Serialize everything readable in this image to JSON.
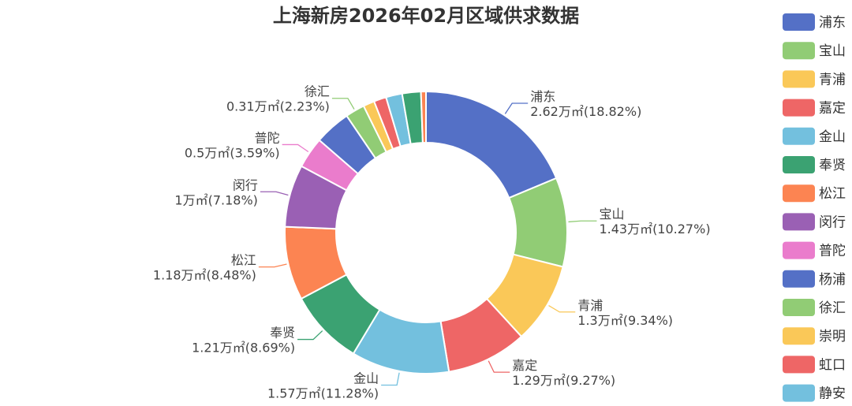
{
  "chart_data": {
    "type": "pie",
    "title": "上海新房2026年02月区域供求数据",
    "legend_position": "right",
    "unit": "万㎡",
    "slices": [
      {
        "name": "浦东",
        "value": 2.62,
        "percent": 18.82,
        "label_value": "2.62万㎡(18.82%)",
        "color": "#5470c6"
      },
      {
        "name": "宝山",
        "value": 1.43,
        "percent": 10.27,
        "label_value": "1.43万㎡(10.27%)",
        "color": "#91cc75"
      },
      {
        "name": "青浦",
        "value": 1.3,
        "percent": 9.34,
        "label_value": "1.3万㎡(9.34%)",
        "color": "#fac858"
      },
      {
        "name": "嘉定",
        "value": 1.29,
        "percent": 9.27,
        "label_value": "1.29万㎡(9.27%)",
        "color": "#ee6666"
      },
      {
        "name": "金山",
        "value": 1.57,
        "percent": 11.28,
        "label_value": "1.57万㎡(11.28%)",
        "color": "#73c0de"
      },
      {
        "name": "奉贤",
        "value": 1.21,
        "percent": 8.69,
        "label_value": "1.21万㎡(8.69%)",
        "color": "#3ba272"
      },
      {
        "name": "松江",
        "value": 1.18,
        "percent": 8.48,
        "label_value": "1.18万㎡(8.48%)",
        "color": "#fc8452"
      },
      {
        "name": "闵行",
        "value": 1.0,
        "percent": 7.18,
        "label_value": "1万㎡(7.18%)",
        "color": "#9a60b4"
      },
      {
        "name": "普陀",
        "value": 0.5,
        "percent": 3.59,
        "label_value": "0.5万㎡(3.59%)",
        "color": "#ea7ccc"
      },
      {
        "name": "杨浦",
        "value": 0.58,
        "percent": 4.17,
        "label_value": "",
        "color": "#5470c6"
      },
      {
        "name": "徐汇",
        "value": 0.31,
        "percent": 2.23,
        "label_value": "0.31万㎡(2.23%)",
        "color": "#91cc75"
      },
      {
        "name": "崇明",
        "value": 0.18,
        "percent": 1.29,
        "label_value": "",
        "color": "#fac858"
      },
      {
        "name": "虹口",
        "value": 0.2,
        "percent": 1.44,
        "label_value": "",
        "color": "#ee6666"
      },
      {
        "name": "静安",
        "value": 0.26,
        "percent": 1.87,
        "label_value": "",
        "color": "#73c0de"
      },
      {
        "name": "",
        "value": 0.3,
        "percent": 2.15,
        "label_value": "",
        "color": "#3ba272"
      },
      {
        "name": "",
        "value": 0.08,
        "percent": 0.57,
        "label_value": "",
        "color": "#fc8452"
      }
    ],
    "legend_entries": [
      {
        "name": "浦东",
        "color": "#5470c6"
      },
      {
        "name": "宝山",
        "color": "#91cc75"
      },
      {
        "name": "青浦",
        "color": "#fac858"
      },
      {
        "name": "嘉定",
        "color": "#ee6666"
      },
      {
        "name": "金山",
        "color": "#73c0de"
      },
      {
        "name": "奉贤",
        "color": "#3ba272"
      },
      {
        "name": "松江",
        "color": "#fc8452"
      },
      {
        "name": "闵行",
        "color": "#9a60b4"
      },
      {
        "name": "普陀",
        "color": "#ea7ccc"
      },
      {
        "name": "杨浦",
        "color": "#5470c6"
      },
      {
        "name": "徐汇",
        "color": "#91cc75"
      },
      {
        "name": "崇明",
        "color": "#fac858"
      },
      {
        "name": "虹口",
        "color": "#ee6666"
      },
      {
        "name": "静安",
        "color": "#73c0de"
      }
    ]
  }
}
